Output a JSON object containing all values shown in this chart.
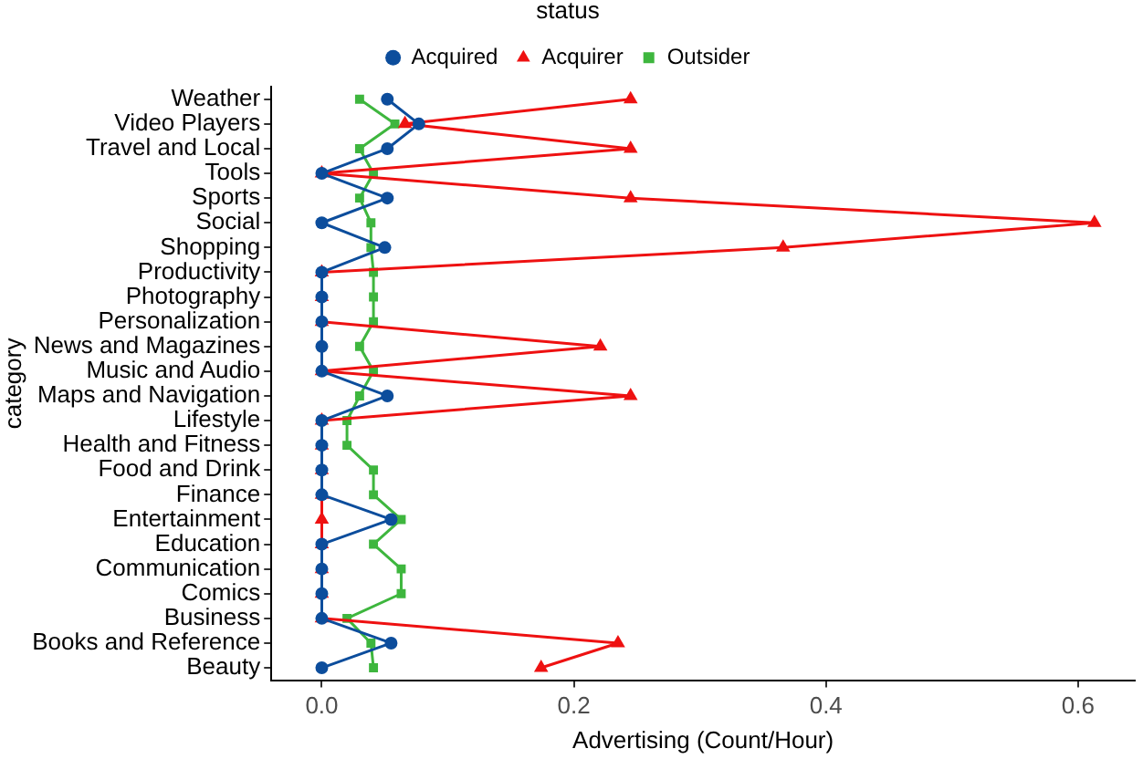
{
  "chart_data": {
    "type": "line",
    "orientation": "horizontal",
    "xlabel": "Advertising (Count/Hour)",
    "ylabel": "category",
    "legend_title": "status",
    "legend": "top",
    "grid": false,
    "categories": [
      "Weather",
      "Video Players",
      "Travel and Local",
      "Tools",
      "Sports",
      "Social",
      "Shopping",
      "Productivity",
      "Photography",
      "Personalization",
      "News and Magazines",
      "Music and Audio",
      "Maps and Navigation",
      "Lifestyle",
      "Health and Fitness",
      "Food and Drink",
      "Finance",
      "Entertainment",
      "Education",
      "Communication",
      "Comics",
      "Business",
      "Books and Reference",
      "Beauty"
    ],
    "xlim": [
      -0.04,
      0.645
    ],
    "xticks": [
      {
        "value": 0,
        "label": "0.0"
      },
      {
        "value": 0.2,
        "label": "0.2"
      },
      {
        "value": 0.4,
        "label": "0.4"
      },
      {
        "value": 0.6,
        "label": "0.6"
      }
    ],
    "series": [
      {
        "name": "Acquired",
        "color": "#0c4d9c",
        "marker": "circle",
        "values": [
          0.052,
          0.077,
          0.052,
          0,
          0.052,
          0,
          0.05,
          0,
          0,
          0,
          0,
          0,
          0.052,
          0,
          0,
          0,
          0,
          0.055,
          0,
          0,
          0,
          0,
          0.055,
          0
        ]
      },
      {
        "name": "Acquirer",
        "color": "#ee1111",
        "marker": "triangle",
        "values": [
          0.245,
          0.066,
          0.245,
          0,
          0.245,
          0.613,
          0.366,
          0,
          0,
          0,
          0.221,
          0,
          0.245,
          0,
          0,
          0,
          0,
          0,
          0,
          0,
          0,
          0,
          0.235,
          0.174
        ]
      },
      {
        "name": "Outsider",
        "color": "#3eb63e",
        "marker": "square",
        "values": [
          0.03,
          0.058,
          0.03,
          0.041,
          0.03,
          0.039,
          0.039,
          0.041,
          0.041,
          0.041,
          0.03,
          0.041,
          0.03,
          0.02,
          0.02,
          0.041,
          0.041,
          0.063,
          0.041,
          0.063,
          0.063,
          0.02,
          0.039,
          0.041
        ]
      }
    ]
  }
}
